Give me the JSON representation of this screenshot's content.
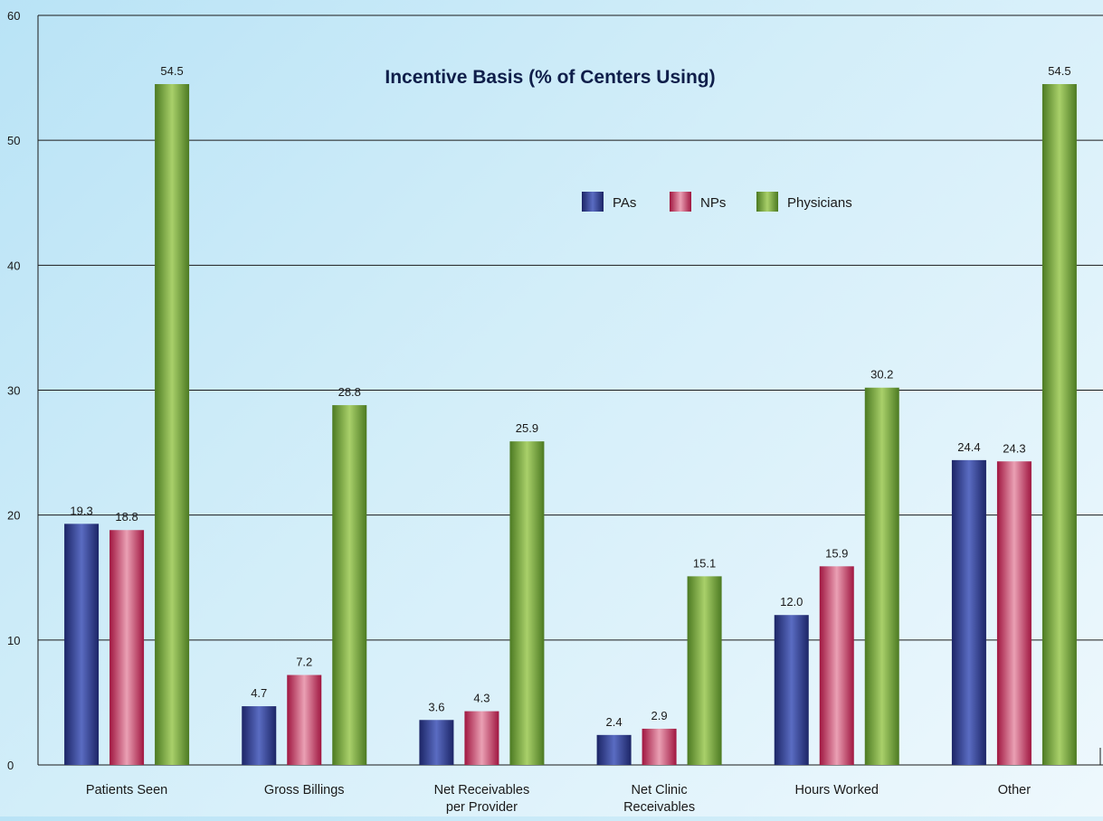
{
  "chart_data": {
    "type": "bar",
    "title": "Incentive Basis (% of Centers Using)",
    "xlabel": "",
    "ylabel": "",
    "ylim": [
      0,
      60
    ],
    "yticks": [
      0,
      10,
      20,
      30,
      40,
      50,
      60
    ],
    "grid": true,
    "legend_position": "top-right",
    "categories": [
      [
        "Patients Seen"
      ],
      [
        "Gross Billings"
      ],
      [
        "Net Receivables",
        "per Provider"
      ],
      [
        "Net Clinic",
        "Receivables"
      ],
      [
        "Hours Worked"
      ],
      [
        "Other"
      ]
    ],
    "series": [
      {
        "name": "PAs",
        "color": "#2b3a8c",
        "values": [
          19.3,
          4.7,
          3.6,
          2.4,
          12.0,
          24.4
        ],
        "labels": [
          "19.3",
          "4.7",
          "3.6",
          "2.4",
          "12.0",
          "24.4"
        ]
      },
      {
        "name": "NPs",
        "color": "#c0204e",
        "values": [
          18.8,
          7.2,
          4.3,
          2.9,
          15.9,
          24.3
        ],
        "labels": [
          "18.8",
          "7.2",
          "4.3",
          "2.9",
          "15.9",
          "24.3"
        ]
      },
      {
        "name": "Physicians",
        "color": "#7aaa3c",
        "values": [
          54.5,
          28.8,
          25.9,
          15.1,
          30.2,
          54.5
        ],
        "labels": [
          "54.5",
          "28.8",
          "25.9",
          "15.1",
          "30.2",
          "54.5"
        ]
      }
    ]
  }
}
